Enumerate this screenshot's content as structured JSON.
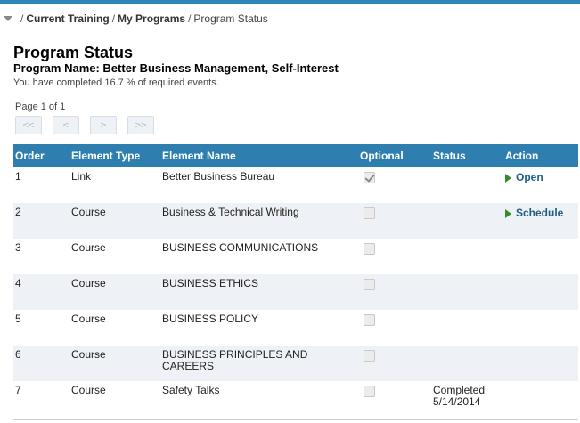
{
  "breadcrumb": {
    "items": [
      "Current Training",
      "My Programs"
    ],
    "current": "Program Status",
    "separator": "/"
  },
  "page": {
    "title": "Program Status",
    "program_name": "Program Name: Better Business Management, Self-Interest",
    "completion_text": "You have completed 16.7 % of required events."
  },
  "pager": {
    "indicator": "Page 1 of 1",
    "first": "<<",
    "prev": "<",
    "next": ">",
    "last": ">>"
  },
  "table": {
    "headers": {
      "order": "Order",
      "element_type": "Element Type",
      "element_name": "Element Name",
      "optional": "Optional",
      "status": "Status",
      "action": "Action"
    },
    "rows": [
      {
        "order": "1",
        "type": "Link",
        "name": "Better Business Bureau",
        "optional_checked": true,
        "status": "",
        "action": "Open"
      },
      {
        "order": "2",
        "type": "Course",
        "name": "Business & Technical Writing",
        "optional_checked": false,
        "status": "",
        "action": "Schedule"
      },
      {
        "order": "3",
        "type": "Course",
        "name": "BUSINESS COMMUNICATIONS",
        "optional_checked": false,
        "status": "",
        "action": ""
      },
      {
        "order": "4",
        "type": "Course",
        "name": "BUSINESS ETHICS",
        "optional_checked": false,
        "status": "",
        "action": ""
      },
      {
        "order": "5",
        "type": "Course",
        "name": "BUSINESS POLICY",
        "optional_checked": false,
        "status": "",
        "action": ""
      },
      {
        "order": "6",
        "type": "Course",
        "name": "BUSINESS PRINCIPLES AND CAREERS",
        "optional_checked": false,
        "status": "",
        "action": ""
      },
      {
        "order": "7",
        "type": "Course",
        "name": "Safety Talks",
        "optional_checked": false,
        "status": "Completed 5/14/2014",
        "action": ""
      }
    ]
  },
  "colors": {
    "header_bg": "#2e7fb0",
    "accent_bar": "#2e86b8",
    "action_link": "#1f5f8a",
    "play_icon": "#3a8a2a",
    "alt_row": "#eef1f5"
  }
}
